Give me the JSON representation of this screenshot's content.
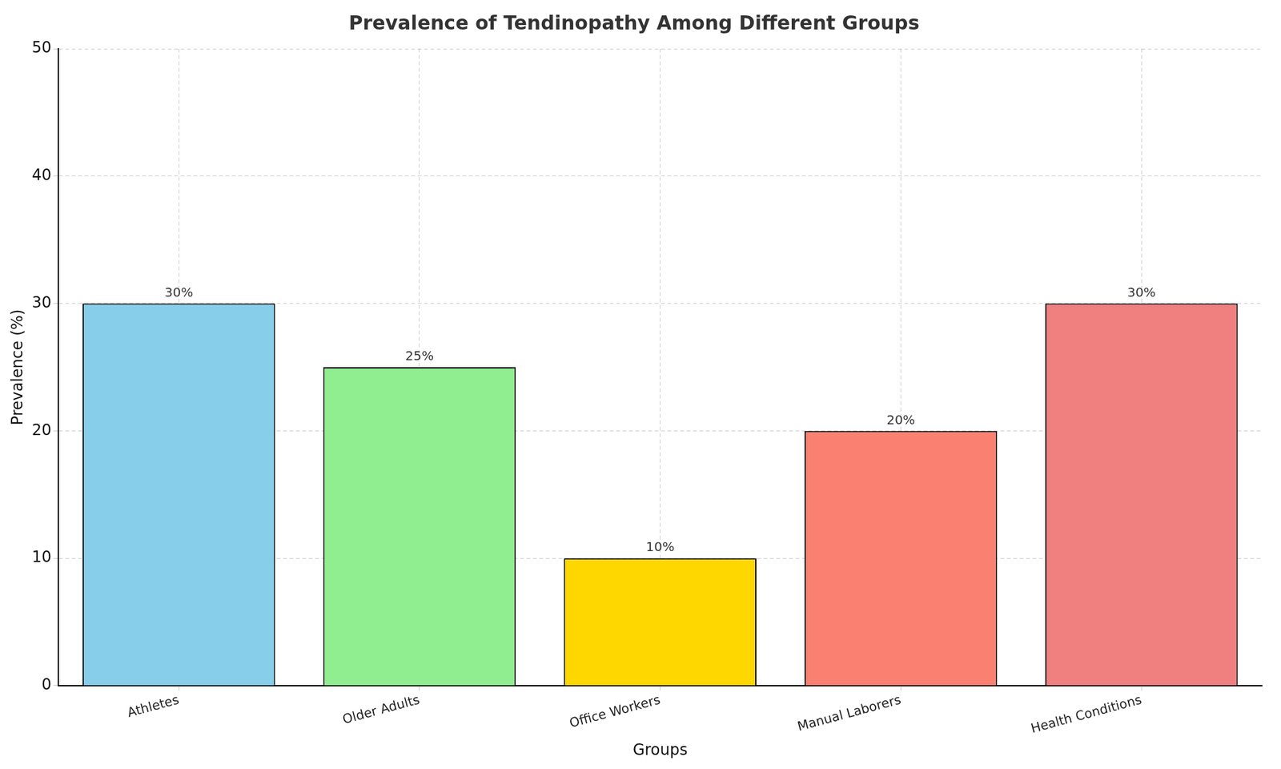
{
  "chart_data": {
    "type": "bar",
    "title": "Prevalence of Tendinopathy Among Different Groups",
    "x_label": "Groups",
    "y_label": "Prevalence (%)",
    "categories": [
      "Athletes",
      "Older Adults",
      "Office Workers",
      "Manual Laborers",
      "Health Conditions"
    ],
    "values": [
      30,
      25,
      10,
      20,
      30
    ],
    "value_labels": [
      "30%",
      "25%",
      "10%",
      "20%",
      "30%"
    ],
    "colors": [
      "#87ceeb",
      "#90ee90",
      "#ffd700",
      "#fa8072",
      "#f08080"
    ],
    "ylim": [
      0,
      50
    ],
    "yticks": [
      0,
      10,
      20,
      30,
      40,
      50
    ],
    "grid": true,
    "data_labels": true
  }
}
